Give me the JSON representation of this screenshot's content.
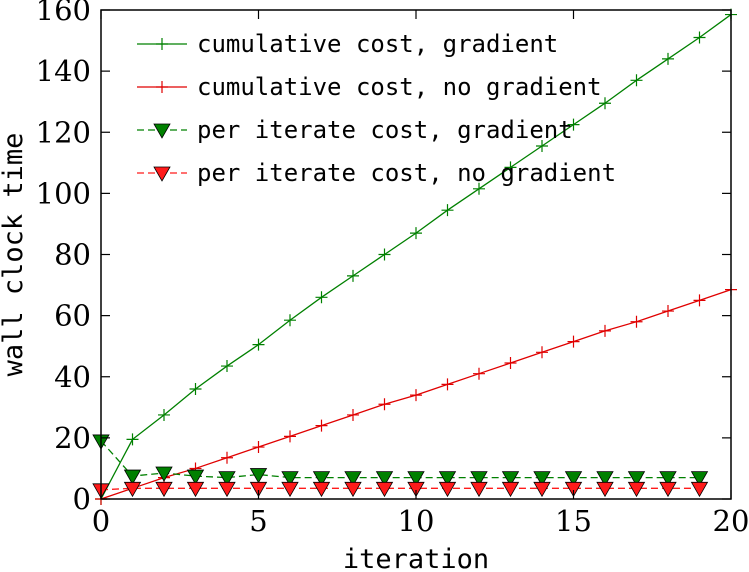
{
  "chart_data": {
    "type": "line",
    "xlabel": "iteration",
    "ylabel": "wall clock time",
    "xlim": [
      0,
      20
    ],
    "ylim": [
      0,
      160
    ],
    "x_ticks": [
      0,
      5,
      10,
      15,
      20
    ],
    "y_ticks": [
      0,
      20,
      40,
      60,
      80,
      100,
      120,
      140,
      160
    ],
    "grid": false,
    "legend_position": "top-left",
    "series": [
      {
        "name": "cumulative cost, gradient",
        "color": "#008000",
        "line_style": "solid",
        "marker": "plus",
        "x": [
          0,
          1,
          2,
          3,
          4,
          5,
          6,
          7,
          8,
          9,
          10,
          11,
          12,
          13,
          14,
          15,
          16,
          17,
          18,
          19,
          20
        ],
        "values": [
          0,
          19.5,
          27.5,
          36,
          43.5,
          50.5,
          58.5,
          66,
          73,
          80,
          87,
          94.5,
          101.5,
          108.5,
          115.5,
          122.5,
          129.5,
          137,
          144,
          151,
          158.5
        ]
      },
      {
        "name": "cumulative cost, no gradient",
        "color": "#e00000",
        "line_style": "solid",
        "marker": "plus",
        "x": [
          0,
          1,
          2,
          3,
          4,
          5,
          6,
          7,
          8,
          9,
          10,
          11,
          12,
          13,
          14,
          15,
          16,
          17,
          18,
          19,
          20
        ],
        "values": [
          0,
          3.5,
          7,
          10,
          13.5,
          17,
          20.5,
          24,
          27.5,
          31,
          34,
          37.5,
          41,
          44.5,
          48,
          51.5,
          55,
          58,
          61.5,
          65,
          68.5
        ]
      },
      {
        "name": "per iterate cost, gradient",
        "color": "#008000",
        "line_style": "dashed",
        "marker": "triangle-down",
        "x": [
          0,
          1,
          2,
          3,
          4,
          5,
          6,
          7,
          8,
          9,
          10,
          11,
          12,
          13,
          14,
          15,
          16,
          17,
          18,
          19
        ],
        "values": [
          19,
          7.5,
          8.5,
          7.5,
          7,
          8,
          7,
          7,
          7,
          7,
          7,
          7,
          7,
          7,
          7,
          7,
          7,
          7,
          7,
          7
        ]
      },
      {
        "name": "per iterate cost, no gradient",
        "color": "#ff1a1a",
        "line_style": "dashed",
        "marker": "triangle-down",
        "x": [
          0,
          1,
          2,
          3,
          4,
          5,
          6,
          7,
          8,
          9,
          10,
          11,
          12,
          13,
          14,
          15,
          16,
          17,
          18,
          19
        ],
        "values": [
          3,
          3.5,
          3.5,
          3.5,
          3.5,
          3.5,
          3.5,
          3.5,
          3.5,
          3.5,
          3.5,
          3.5,
          3.5,
          3.5,
          3.5,
          3.5,
          3.5,
          3.5,
          3.5,
          3.5
        ]
      }
    ]
  }
}
